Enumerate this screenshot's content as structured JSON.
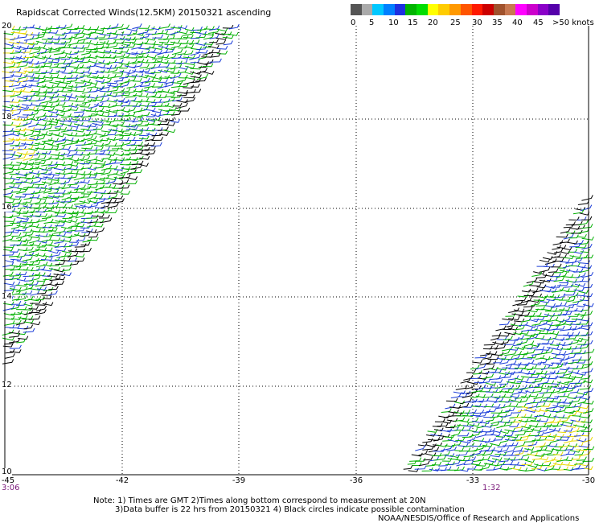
{
  "title": "Rapidscat Corrected Winds(12.5KM) 20150321 ascending",
  "legend": {
    "colors": [
      "#555555",
      "#aaaaaa",
      "#00c8ff",
      "#0080ff",
      "#1e30e0",
      "#00b400",
      "#00dd00",
      "#ffff00",
      "#ffcc00",
      "#ff9900",
      "#ff5500",
      "#ff1a00",
      "#cc0000",
      "#a0522d",
      "#c87850",
      "#ff00ff",
      "#cc00cc",
      "#8a00c8",
      "#5500aa"
    ],
    "labels": [
      "0",
      "5",
      "10",
      "15",
      "20",
      "25",
      "30",
      "35",
      "40",
      "45",
      ">50 knots"
    ]
  },
  "axes": {
    "y_labels": [
      "20",
      "18",
      "16",
      "14",
      "12",
      "10"
    ],
    "x_labels": [
      "-45",
      "-42",
      "-39",
      "-36",
      "-33",
      "-30"
    ]
  },
  "swath_times": {
    "left": "3:06",
    "right": "1:32"
  },
  "notes": [
    "Note: 1) Times are GMT 2)Times along bottom correspond to measurement at 20N",
    "3)Data buffer is 22 hrs from 20150321 4) Black circles indicate possible contamination"
  ],
  "credit": "NOAA/NESDIS/Office of Research and Applications"
}
